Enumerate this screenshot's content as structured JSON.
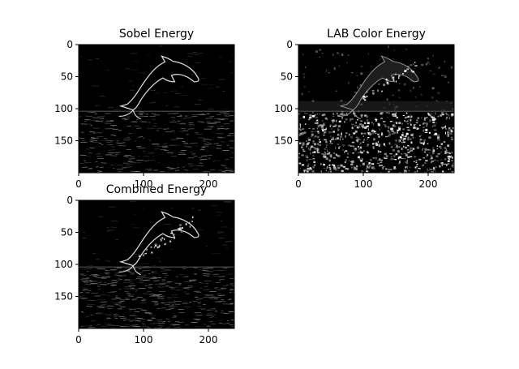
{
  "figure": {
    "background": "#ffffff",
    "axis_color": "#000000"
  },
  "chart_data": [
    {
      "type": "heatmap",
      "title": "Sobel Energy",
      "colormap": "gray",
      "xlim": [
        0,
        240
      ],
      "ylim": [
        200,
        0
      ],
      "xticks": [
        0,
        100,
        200
      ],
      "yticks": [
        0,
        50,
        100,
        150
      ],
      "subject": "dolphin-outline",
      "style": "edges"
    },
    {
      "type": "heatmap",
      "title": "LAB Color Energy",
      "colormap": "gray",
      "xlim": [
        0,
        240
      ],
      "ylim": [
        200,
        0
      ],
      "xticks": [
        0,
        100,
        200
      ],
      "yticks": [
        0,
        50,
        100,
        150
      ],
      "subject": "dolphin-outline",
      "style": "speckle"
    },
    {
      "type": "heatmap",
      "title": "Combined Energy",
      "colormap": "gray",
      "xlim": [
        0,
        240
      ],
      "ylim": [
        200,
        0
      ],
      "xticks": [
        0,
        100,
        200
      ],
      "yticks": [
        0,
        50,
        100,
        150
      ],
      "subject": "dolphin-outline",
      "style": "combined"
    }
  ]
}
